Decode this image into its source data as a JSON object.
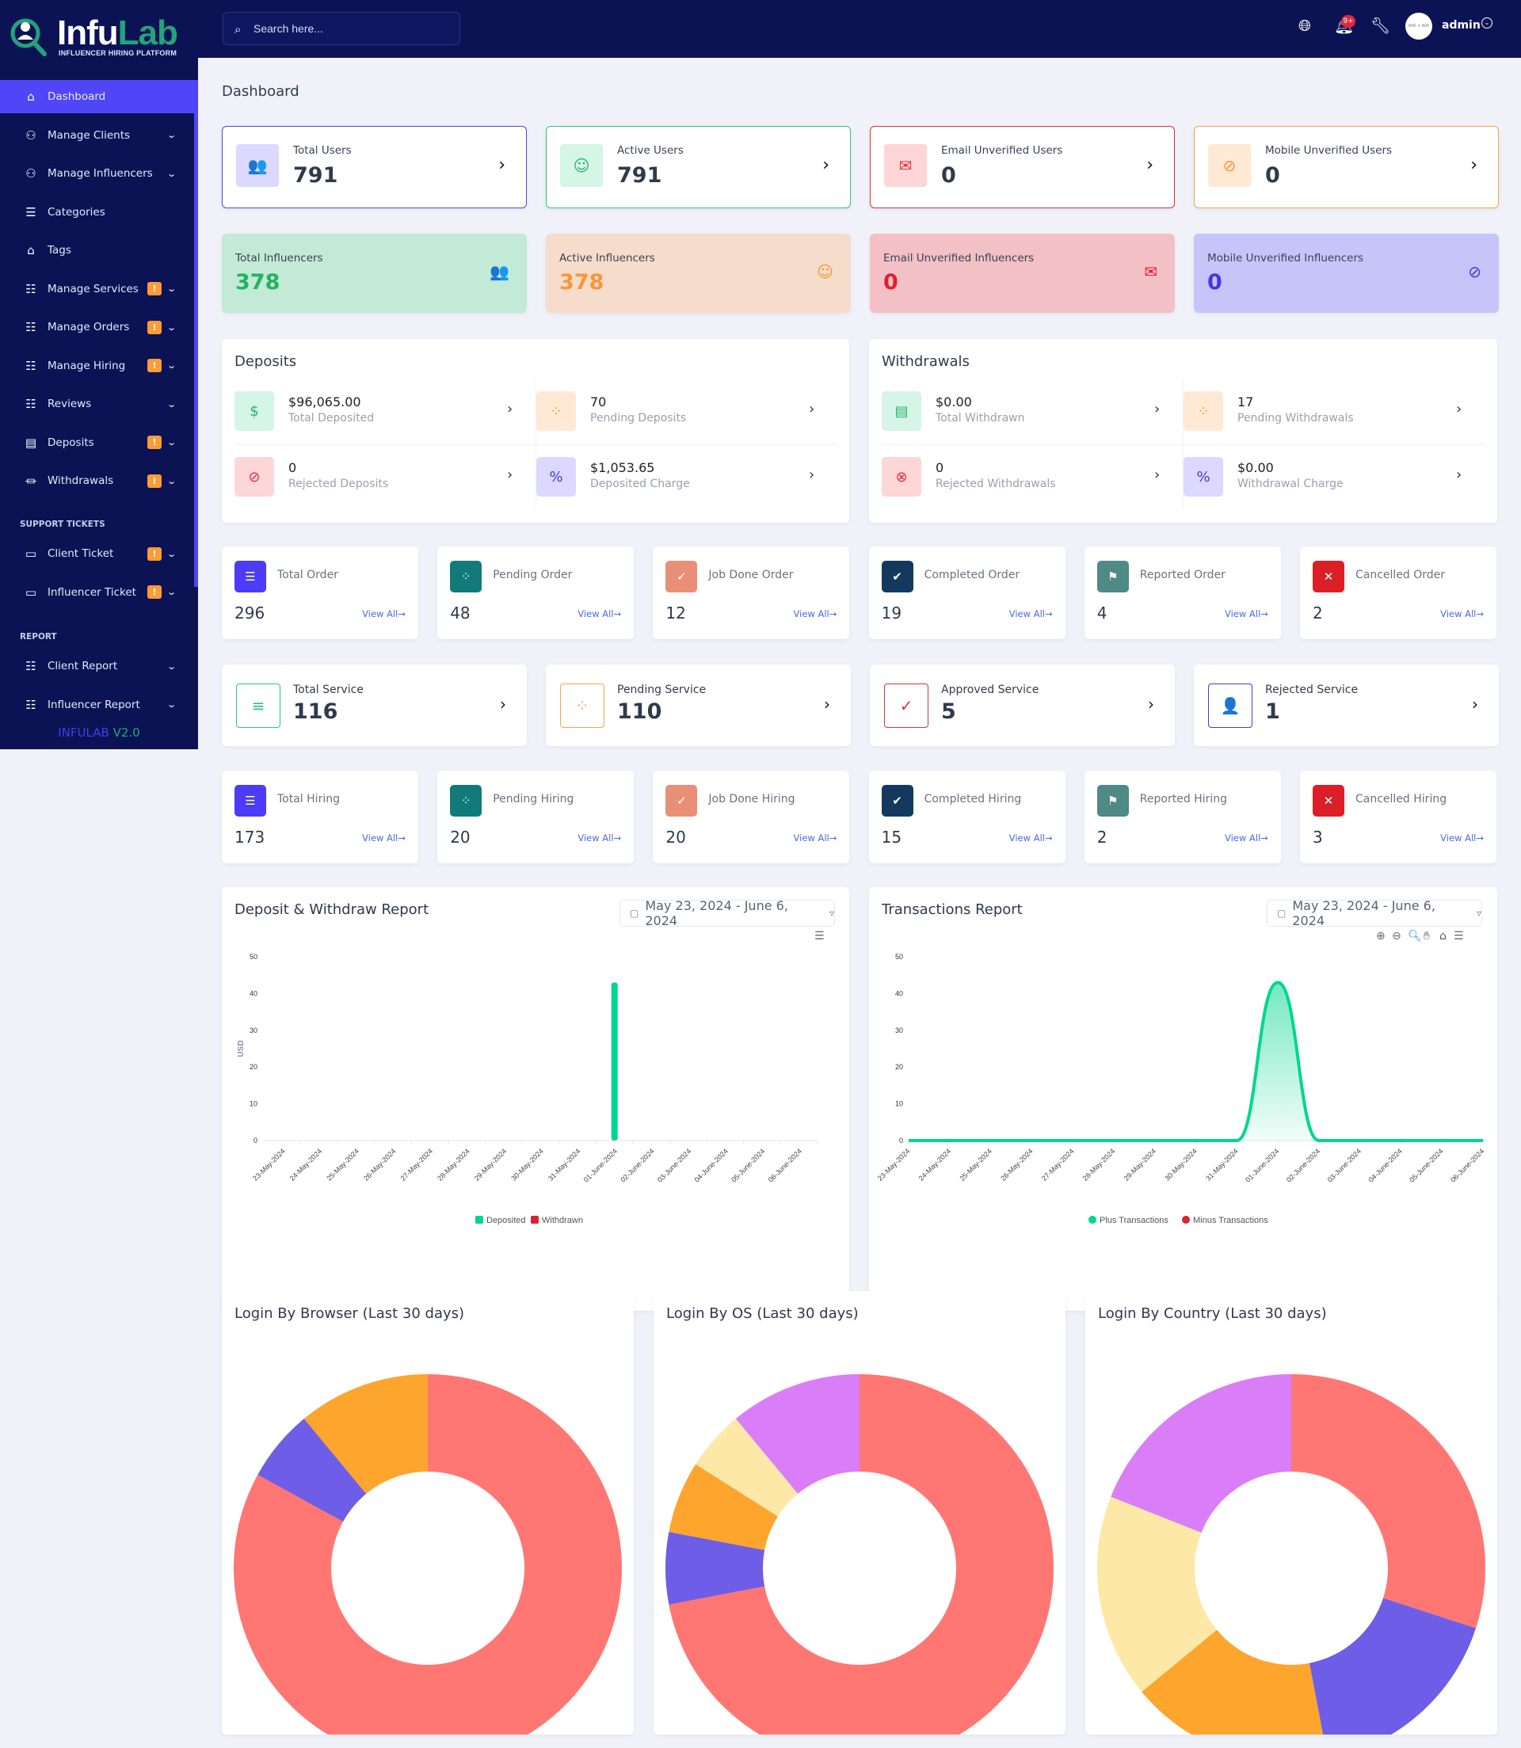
{
  "brand": {
    "name_a": "Infu",
    "name_b": "Lab",
    "tagline": "INFLUENCER HIRING PLATFORM",
    "version_a": "INFULAB",
    "version_b": "V2.0"
  },
  "topbar": {
    "search_placeholder": "Search here...",
    "notification_count": "9+",
    "avatar_text": "400 × 400",
    "user": "admin"
  },
  "sidebar": {
    "items": [
      {
        "label": "Dashboard",
        "icon": "home-icon",
        "active": true
      },
      {
        "label": "Manage Clients",
        "icon": "users-icon",
        "chevron": true
      },
      {
        "label": "Manage Influencers",
        "icon": "user-group-icon",
        "chevron": true
      },
      {
        "label": "Categories",
        "icon": "list-icon"
      },
      {
        "label": "Tags",
        "icon": "tag-icon"
      },
      {
        "label": "Manage Services",
        "icon": "checklist-icon",
        "warn": "!",
        "chevron": true
      },
      {
        "label": "Manage Orders",
        "icon": "checklist-icon",
        "warn": "!",
        "chevron": true
      },
      {
        "label": "Manage Hiring",
        "icon": "checklist-icon",
        "warn": "!",
        "chevron": true
      },
      {
        "label": "Reviews",
        "icon": "checklist-icon",
        "chevron": true
      },
      {
        "label": "Deposits",
        "icon": "invoice-dollar-icon",
        "warn": "!",
        "chevron": true
      },
      {
        "label": "Withdrawals",
        "icon": "bank-icon",
        "warn": "!",
        "chevron": true
      }
    ],
    "support_heading": "SUPPORT TICKETS",
    "support": [
      {
        "label": "Client Ticket",
        "icon": "ticket-icon",
        "warn": "!",
        "chevron": true
      },
      {
        "label": "Influencer Ticket",
        "icon": "ticket-icon",
        "warn": "!",
        "chevron": true
      }
    ],
    "report_heading": "REPORT",
    "report": [
      {
        "label": "Client Report",
        "icon": "report-list-icon",
        "chevron": true
      },
      {
        "label": "Influencer Report",
        "icon": "report-list-icon",
        "chevron": true
      }
    ]
  },
  "page_title": "Dashboard",
  "user_cards": [
    {
      "label": "Total Users",
      "value": "791",
      "border": "#5b43d6",
      "bg": "#dcd8ff",
      "color": "#5146f7",
      "icon": "users-icon",
      "glyph": "👥"
    },
    {
      "label": "Active Users",
      "value": "791",
      "border": "#2ec47d",
      "bg": "#d5f5e6",
      "color": "#26b36a",
      "icon": "user-check-icon",
      "glyph": "☺"
    },
    {
      "label": "Email Unverified Users",
      "value": "0",
      "border": "#d8323d",
      "bg": "#fdd6d8",
      "color": "#d8323d",
      "icon": "envelope-icon",
      "glyph": "✉"
    },
    {
      "label": "Mobile Unverified Users",
      "value": "0",
      "border": "#f7a24b",
      "bg": "#ffe9d4",
      "color": "#f7963a",
      "icon": "message-slash-icon",
      "glyph": "⊘"
    }
  ],
  "influencer_cards": [
    {
      "label": "Total Influencers",
      "value": "378",
      "bg": "#c2ead6",
      "color": "#22b35f",
      "icon": "users-icon",
      "glyph": "👥"
    },
    {
      "label": "Active Influencers",
      "value": "378",
      "bg": "#f6dccb",
      "color": "#f7963a",
      "icon": "user-check-icon",
      "glyph": "☺"
    },
    {
      "label": "Email Unverified Influencers",
      "value": "0",
      "bg": "#f2c0c5",
      "color": "#e0202e",
      "icon": "envelope-icon",
      "glyph": "✉"
    },
    {
      "label": "Mobile Unverified Influencers",
      "value": "0",
      "bg": "#c7c4f9",
      "color": "#4437e6",
      "icon": "message-slash-icon",
      "glyph": "⊘"
    }
  ],
  "deposits": {
    "title": "Deposits",
    "items": [
      {
        "value": "$96,065.00",
        "label": "Total Deposited",
        "bg": "#d5f5e6",
        "color": "#26b36a",
        "icon": "hand-dollar-icon",
        "glyph": "$"
      },
      {
        "value": "70",
        "label": "Pending Deposits",
        "bg": "#ffe9d4",
        "color": "#f7963a",
        "icon": "spinner-icon",
        "glyph": "⁘"
      },
      {
        "value": "0",
        "label": "Rejected Deposits",
        "bg": "#fdd6d8",
        "color": "#d8323d",
        "icon": "ban-icon",
        "glyph": "⊘"
      },
      {
        "value": "$1,053.65",
        "label": "Deposited Charge",
        "bg": "#dcd8ff",
        "color": "#4437e6",
        "icon": "percent-icon",
        "glyph": "%"
      }
    ]
  },
  "withdrawals": {
    "title": "Withdrawals",
    "items": [
      {
        "value": "$0.00",
        "label": "Total Withdrawn",
        "bg": "#d5f5e6",
        "color": "#26b36a",
        "icon": "card-icon",
        "glyph": "▤"
      },
      {
        "value": "17",
        "label": "Pending Withdrawals",
        "bg": "#ffe9d4",
        "color": "#f7963a",
        "icon": "spinner-icon",
        "glyph": "⁘"
      },
      {
        "value": "0",
        "label": "Rejected Withdrawals",
        "bg": "#fdd6d8",
        "color": "#d8323d",
        "icon": "x-circle-icon",
        "glyph": "⊗"
      },
      {
        "value": "$0.00",
        "label": "Withdrawal Charge",
        "bg": "#dcd8ff",
        "color": "#4437e6",
        "icon": "percent-icon",
        "glyph": "%"
      }
    ]
  },
  "view_all": "View All→",
  "orders": [
    {
      "label": "Total Order",
      "value": "296",
      "bg": "#4c3bf7",
      "icon": "list-icon",
      "glyph": "☰"
    },
    {
      "label": "Pending Order",
      "value": "48",
      "bg": "#137a7a",
      "icon": "spinner-icon",
      "glyph": "⁘"
    },
    {
      "label": "Job Done Order",
      "value": "12",
      "bg": "#e98f78",
      "icon": "check-circle-icon",
      "glyph": "✓"
    },
    {
      "label": "Completed Order",
      "value": "19",
      "bg": "#133a5e",
      "icon": "double-check-icon",
      "glyph": "✔"
    },
    {
      "label": "Reported Order",
      "value": "4",
      "bg": "#4f8a86",
      "icon": "gavel-icon",
      "glyph": "⚑"
    },
    {
      "label": "Cancelled Order",
      "value": "2",
      "bg": "#dc1f27",
      "icon": "x-icon",
      "glyph": "✕"
    }
  ],
  "services": [
    {
      "label": "Total Service",
      "value": "116",
      "color": "#2ec47d",
      "icon": "list-icon",
      "glyph": "≡"
    },
    {
      "label": "Pending Service",
      "value": "110",
      "color": "#f7a24b",
      "icon": "spinner-icon",
      "glyph": "⁘"
    },
    {
      "label": "Approved Service",
      "value": "5",
      "color": "#d8323d",
      "icon": "check-circle-icon",
      "glyph": "✓"
    },
    {
      "label": "Rejected Service",
      "value": "1",
      "color": "#4437e6",
      "icon": "user-icon",
      "glyph": "👤"
    }
  ],
  "hiring": [
    {
      "label": "Total Hiring",
      "value": "173",
      "bg": "#4c3bf7",
      "icon": "list-icon",
      "glyph": "☰"
    },
    {
      "label": "Pending Hiring",
      "value": "20",
      "bg": "#137a7a",
      "icon": "spinner-icon",
      "glyph": "⁘"
    },
    {
      "label": "Job Done Hiring",
      "value": "20",
      "bg": "#e98f78",
      "icon": "check-circle-icon",
      "glyph": "✓"
    },
    {
      "label": "Completed Hiring",
      "value": "15",
      "bg": "#133a5e",
      "icon": "double-check-icon",
      "glyph": "✔"
    },
    {
      "label": "Reported Hiring",
      "value": "2",
      "bg": "#4f8a86",
      "icon": "gavel-icon",
      "glyph": "⚑"
    },
    {
      "label": "Cancelled Hiring",
      "value": "3",
      "bg": "#dc1f27",
      "icon": "x-icon",
      "glyph": "✕"
    }
  ],
  "chart_data": [
    {
      "type": "bar",
      "title": "Deposit & Withdraw Report",
      "date_range": "May 23, 2024 - June 6, 2024",
      "ylabel": "USD",
      "ylim": [
        0,
        50
      ],
      "yticks": [
        "0",
        "10",
        "20",
        "30",
        "40",
        "50"
      ],
      "categories": [
        "23-May-2024",
        "24-May-2024",
        "25-May-2024",
        "26-May-2024",
        "27-May-2024",
        "28-May-2024",
        "29-May-2024",
        "30-May-2024",
        "31-May-2024",
        "01-June-2024",
        "02-June-2024",
        "03-June-2024",
        "04-June-2024",
        "05-June-2024",
        "06-June-2024"
      ],
      "series": [
        {
          "name": "Deposited",
          "color": "#00d68f",
          "values": [
            0,
            0,
            0,
            0,
            0,
            0,
            0,
            0,
            0,
            43,
            0,
            0,
            0,
            0,
            0
          ]
        },
        {
          "name": "Withdrawn",
          "color": "#dc2430",
          "values": [
            0,
            0,
            0,
            0,
            0,
            0,
            0,
            0,
            0,
            0,
            0,
            0,
            0,
            0,
            0
          ]
        }
      ],
      "legend": "bottom"
    },
    {
      "type": "area",
      "title": "Transactions Report",
      "date_range": "May 23, 2024 - June 6, 2024",
      "ylim": [
        0,
        50
      ],
      "yticks": [
        "0",
        "10",
        "20",
        "30",
        "40",
        "50"
      ],
      "categories": [
        "23-May-2024",
        "24-May-2024",
        "25-May-2024",
        "26-May-2024",
        "27-May-2024",
        "28-May-2024",
        "29-May-2024",
        "30-May-2024",
        "31-May-2024",
        "01-June-2024",
        "02-June-2024",
        "03-June-2024",
        "04-June-2024",
        "05-June-2024",
        "06-June-2024"
      ],
      "series": [
        {
          "name": "Plus Transactions",
          "color": "#00d68f",
          "values": [
            0,
            0,
            0,
            0,
            0,
            0,
            0,
            0,
            0,
            43,
            0,
            0,
            0,
            0,
            0
          ]
        },
        {
          "name": "Minus Transactions",
          "color": "#dc2430",
          "values": [
            0,
            0,
            0,
            0,
            0,
            0,
            0,
            0,
            0,
            0,
            0,
            0,
            0,
            0,
            0
          ]
        }
      ],
      "legend": "bottom"
    },
    {
      "type": "pie",
      "title": "Login By Browser (Last 30 days)",
      "slices": [
        {
          "value": 83,
          "color": "#ff7673"
        },
        {
          "value": 6,
          "color": "#6e5de6"
        },
        {
          "value": 11,
          "color": "#fda52c"
        }
      ]
    },
    {
      "type": "pie",
      "title": "Login By OS (Last 30 days)",
      "slices": [
        {
          "value": 72,
          "color": "#ff7673"
        },
        {
          "value": 6,
          "color": "#6e5de6"
        },
        {
          "value": 6,
          "color": "#fda52c"
        },
        {
          "value": 5,
          "color": "#fde8a7"
        },
        {
          "value": 11,
          "color": "#d97ef7"
        }
      ]
    },
    {
      "type": "pie",
      "title": "Login By Country (Last 30 days)",
      "slices": [
        {
          "value": 30,
          "color": "#ff7673"
        },
        {
          "value": 17,
          "color": "#6e5de6"
        },
        {
          "value": 17,
          "color": "#fda52c"
        },
        {
          "value": 17,
          "color": "#fde8a7"
        },
        {
          "value": 19,
          "color": "#d97ef7"
        }
      ]
    }
  ]
}
